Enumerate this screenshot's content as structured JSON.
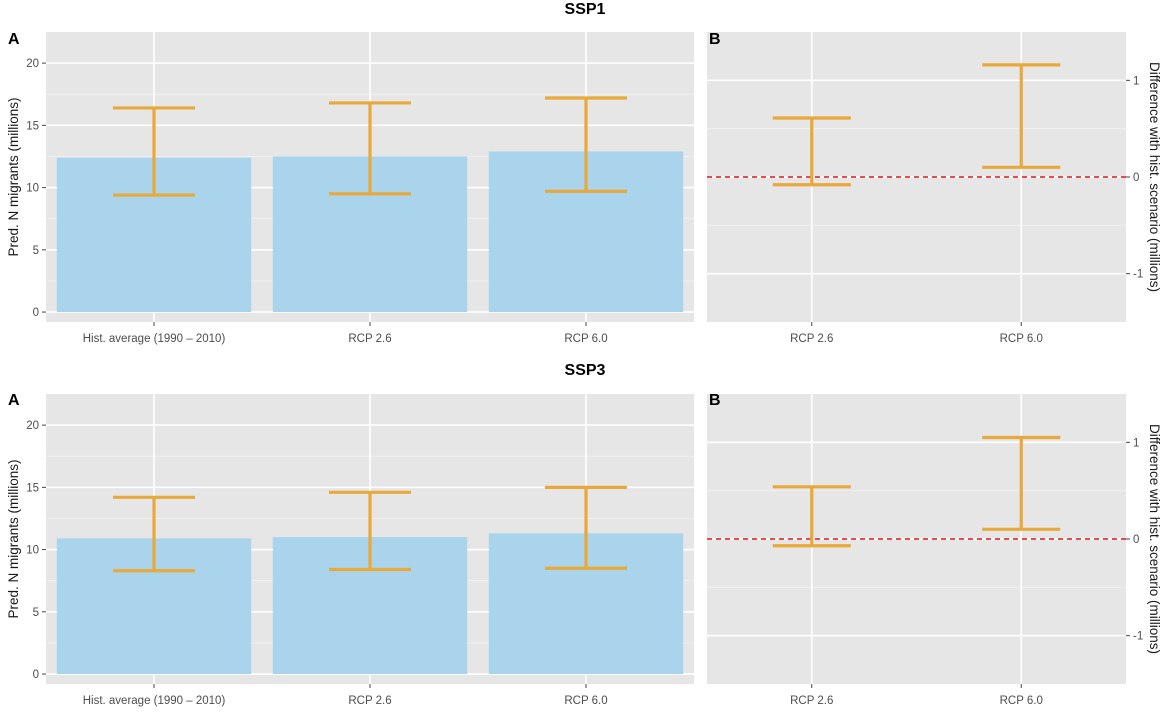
{
  "figure": {
    "colors": {
      "bar": "#a9d4ec",
      "errorbar": "#e8a93a",
      "reference": "#d7191c"
    },
    "chart_data": [
      {
        "section": "SSP1",
        "panel": "A",
        "type": "bar",
        "categories": [
          "Hist. average (1990 – 2010)",
          "RCP 2.6",
          "RCP 6.0"
        ],
        "values": [
          12.4,
          12.5,
          12.9
        ],
        "error_low": [
          9.4,
          9.5,
          9.7
        ],
        "error_high": [
          16.4,
          16.8,
          17.2
        ],
        "ylabel": "Pred. N migrants (millions)",
        "ylim": [
          -0.8,
          22.5
        ],
        "yticks": [
          0,
          5,
          10,
          15,
          20
        ]
      },
      {
        "section": "SSP1",
        "panel": "B",
        "type": "errorbar",
        "categories": [
          "RCP 2.6",
          "RCP 6.0"
        ],
        "error_low": [
          -0.08,
          0.1
        ],
        "error_high": [
          0.61,
          1.16
        ],
        "reference_line": 0,
        "ylabel": "Difference with hist. scenario (millions)",
        "ylim": [
          -1.5,
          1.5
        ],
        "yticks": [
          -1,
          0,
          1
        ],
        "y_axis_position": "right"
      },
      {
        "section": "SSP3",
        "panel": "A",
        "type": "bar",
        "categories": [
          "Hist. average (1990 – 2010)",
          "RCP 2.6",
          "RCP 6.0"
        ],
        "values": [
          10.9,
          11.0,
          11.3
        ],
        "error_low": [
          8.3,
          8.4,
          8.5
        ],
        "error_high": [
          14.2,
          14.6,
          15.0
        ],
        "ylabel": "Pred. N migrants (millions)",
        "ylim": [
          -0.8,
          22.5
        ],
        "yticks": [
          0,
          5,
          10,
          15,
          20
        ]
      },
      {
        "section": "SSP3",
        "panel": "B",
        "type": "errorbar",
        "categories": [
          "RCP 2.6",
          "RCP 6.0"
        ],
        "error_low": [
          -0.07,
          0.1
        ],
        "error_high": [
          0.54,
          1.05
        ],
        "reference_line": 0,
        "ylabel": "Difference with hist. scenario (millions)",
        "ylim": [
          -1.5,
          1.5
        ],
        "yticks": [
          -1,
          0,
          1
        ],
        "y_axis_position": "right"
      }
    ]
  }
}
